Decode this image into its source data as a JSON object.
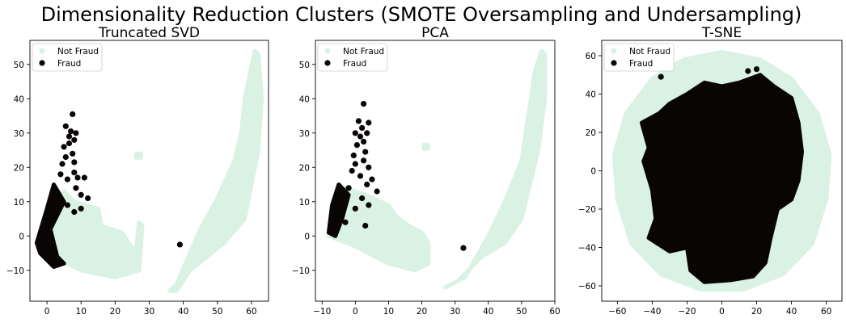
{
  "figure": {
    "suptitle": "Dimensionality Reduction Clusters (SMOTE Oversampling and Undersampling)"
  },
  "colors": {
    "not_fraud": "#d9f2e3",
    "fraud": "#0a0505",
    "axes": "#000000",
    "background": "#ffffff"
  },
  "chart_data": [
    {
      "type": "scatter",
      "title": "Truncated SVD",
      "xlabel": "",
      "ylabel": "",
      "xlim": [
        -5,
        65
      ],
      "ylim": [
        -19,
        57
      ],
      "xticks": [
        0,
        10,
        20,
        30,
        40,
        50,
        60
      ],
      "yticks": [
        -10,
        0,
        10,
        20,
        30,
        40,
        50
      ],
      "legend_position": "upper-left",
      "series": [
        {
          "name": "Not Fraud",
          "color": "#d9f2e3",
          "regions": [
            [
              [
                -3,
                -2
              ],
              [
                5,
                13
              ],
              [
                8,
                10
              ],
              [
                15,
                8
              ],
              [
                16,
                3
              ],
              [
                22,
                1
              ],
              [
                24,
                -2
              ],
              [
                26,
                -5
              ],
              [
                27,
                4
              ],
              [
                28,
                3
              ],
              [
                27,
                -10
              ],
              [
                20,
                -12
              ],
              [
                10,
                -10
              ],
              [
                0,
                -5
              ],
              [
                -3,
                -2
              ]
            ],
            [
              [
                36,
                -16
              ],
              [
                38,
                -14
              ],
              [
                45,
                2
              ],
              [
                50,
                11
              ],
              [
                55,
                22
              ],
              [
                57,
                30
              ],
              [
                58,
                40
              ],
              [
                61,
                54
              ],
              [
                62,
                53
              ],
              [
                63,
                40
              ],
              [
                62,
                25
              ],
              [
                58,
                5
              ],
              [
                52,
                -2
              ],
              [
                47,
                -6
              ],
              [
                42,
                -10
              ],
              [
                38,
                -16
              ],
              [
                36,
                -16
              ]
            ],
            [
              [
                26.2,
                22.8
              ],
              [
                27.6,
                22.8
              ],
              [
                27.6,
                24
              ],
              [
                26.2,
                24
              ],
              [
                26.2,
                22.8
              ]
            ]
          ]
        },
        {
          "name": "Fraud",
          "color": "#0a0505",
          "regions": [
            [
              [
                -3,
                -2
              ],
              [
                0,
                8
              ],
              [
                2,
                15
              ],
              [
                5,
                10
              ],
              [
                1,
                2
              ],
              [
                3,
                -6
              ],
              [
                5,
                -8
              ],
              [
                2,
                -9
              ],
              [
                -2,
                -5
              ],
              [
                -3,
                -2
              ]
            ]
          ],
          "points": [
            [
              7.5,
              35.5
            ],
            [
              5.5,
              32
            ],
            [
              7,
              30.5
            ],
            [
              6.5,
              29
            ],
            [
              8.5,
              30
            ],
            [
              8,
              28
            ],
            [
              6.5,
              27
            ],
            [
              5,
              26
            ],
            [
              7.5,
              24
            ],
            [
              5.5,
              23
            ],
            [
              8,
              21.5
            ],
            [
              4.5,
              21
            ],
            [
              4,
              18
            ],
            [
              8,
              18.5
            ],
            [
              6,
              16.5
            ],
            [
              9,
              17
            ],
            [
              11,
              17
            ],
            [
              8.5,
              14
            ],
            [
              10,
              12
            ],
            [
              12,
              11
            ],
            [
              6,
              9
            ],
            [
              8,
              7
            ],
            [
              10,
              8
            ],
            [
              39,
              -2.5
            ]
          ]
        }
      ]
    },
    {
      "type": "scatter",
      "title": "PCA",
      "xlabel": "",
      "ylabel": "",
      "xlim": [
        -12,
        60
      ],
      "ylim": [
        -19,
        57
      ],
      "xticks": [
        -10,
        0,
        10,
        20,
        30,
        40,
        50,
        60
      ],
      "yticks": [
        -10,
        0,
        10,
        20,
        30,
        40,
        50
      ],
      "legend_position": "upper-left",
      "series": [
        {
          "name": "Not Fraud",
          "color": "#d9f2e3",
          "regions": [
            [
              [
                -8,
                0
              ],
              [
                -3,
                14
              ],
              [
                3,
                12
              ],
              [
                10,
                9
              ],
              [
                12,
                6
              ],
              [
                16,
                3
              ],
              [
                20,
                1
              ],
              [
                22,
                -2
              ],
              [
                22,
                -8
              ],
              [
                18,
                -10
              ],
              [
                10,
                -8
              ],
              [
                0,
                -3
              ],
              [
                -8,
                0
              ]
            ],
            [
              [
                27,
                -15
              ],
              [
                33,
                -12
              ],
              [
                40,
                0
              ],
              [
                45,
                10
              ],
              [
                50,
                22
              ],
              [
                52,
                35
              ],
              [
                54,
                48
              ],
              [
                56,
                54
              ],
              [
                57,
                53
              ],
              [
                57,
                40
              ],
              [
                55,
                25
              ],
              [
                50,
                5
              ],
              [
                45,
                -2
              ],
              [
                38,
                -6
              ],
              [
                31,
                -13
              ],
              [
                27,
                -15
              ]
            ],
            [
              [
                20.6,
                25.4
              ],
              [
                21.8,
                25.4
              ],
              [
                21.8,
                26.6
              ],
              [
                20.6,
                26.6
              ],
              [
                20.6,
                25.4
              ]
            ]
          ]
        },
        {
          "name": "Fraud",
          "color": "#0a0505",
          "regions": [
            [
              [
                -8,
                1
              ],
              [
                -7,
                9
              ],
              [
                -5,
                15
              ],
              [
                -2,
                12
              ],
              [
                -4,
                5
              ],
              [
                -6,
                0
              ],
              [
                -8,
                1
              ]
            ]
          ],
          "points": [
            [
              2.5,
              38.5
            ],
            [
              1,
              33.5
            ],
            [
              4,
              33
            ],
            [
              2,
              31.5
            ],
            [
              0,
              30
            ],
            [
              3.5,
              30
            ],
            [
              1.5,
              29
            ],
            [
              2.5,
              27.5
            ],
            [
              0.5,
              26.5
            ],
            [
              3,
              24.5
            ],
            [
              -0.5,
              23.5
            ],
            [
              2.5,
              22
            ],
            [
              0,
              21
            ],
            [
              4,
              20
            ],
            [
              -1,
              19
            ],
            [
              1.5,
              17.5
            ],
            [
              5,
              16.5
            ],
            [
              3.5,
              15
            ],
            [
              6.5,
              13
            ],
            [
              2,
              11
            ],
            [
              4,
              9
            ],
            [
              0,
              8
            ],
            [
              -2,
              14
            ],
            [
              -3,
              4
            ],
            [
              3,
              3
            ],
            [
              32.5,
              -3.5
            ]
          ]
        }
      ]
    },
    {
      "type": "scatter",
      "title": "T-SNE",
      "xlabel": "",
      "ylabel": "",
      "xlim": [
        -69,
        69
      ],
      "ylim": [
        -68,
        68
      ],
      "xticks": [
        -60,
        -40,
        -20,
        0,
        20,
        40,
        60
      ],
      "yticks": [
        -60,
        -40,
        -20,
        0,
        20,
        40,
        60
      ],
      "legend_position": "upper-left",
      "series": [
        {
          "name": "Not Fraud",
          "color": "#d9f2e3",
          "regions": [
            [
              [
                0,
                62
              ],
              [
                22,
                58
              ],
              [
                40,
                48
              ],
              [
                55,
                30
              ],
              [
                62,
                8
              ],
              [
                60,
                -15
              ],
              [
                52,
                -38
              ],
              [
                35,
                -54
              ],
              [
                12,
                -62
              ],
              [
                -12,
                -62
              ],
              [
                -35,
                -54
              ],
              [
                -52,
                -38
              ],
              [
                -60,
                -15
              ],
              [
                -62,
                8
              ],
              [
                -55,
                30
              ],
              [
                -40,
                48
              ],
              [
                -22,
                58
              ],
              [
                0,
                62
              ]
            ]
          ]
        },
        {
          "name": "Fraud",
          "color": "#0a0505",
          "regions": [
            [
              [
                -20,
                40
              ],
              [
                -10,
                46
              ],
              [
                0,
                44
              ],
              [
                10,
                46
              ],
              [
                22,
                50
              ],
              [
                30,
                44
              ],
              [
                40,
                38
              ],
              [
                44,
                25
              ],
              [
                46,
                10
              ],
              [
                44,
                -5
              ],
              [
                40,
                -15
              ],
              [
                32,
                -20
              ],
              [
                28,
                -35
              ],
              [
                25,
                -48
              ],
              [
                18,
                -55
              ],
              [
                5,
                -57
              ],
              [
                -10,
                -58
              ],
              [
                -18,
                -52
              ],
              [
                -20,
                -40
              ],
              [
                -30,
                -42
              ],
              [
                -42,
                -35
              ],
              [
                -38,
                -25
              ],
              [
                -40,
                -10
              ],
              [
                -45,
                5
              ],
              [
                -42,
                12
              ],
              [
                -46,
                25
              ],
              [
                -36,
                30
              ],
              [
                -30,
                35
              ],
              [
                -20,
                40
              ]
            ]
          ],
          "points": [
            [
              15,
              52
            ],
            [
              20,
              53
            ],
            [
              -35,
              49
            ]
          ]
        }
      ]
    }
  ]
}
